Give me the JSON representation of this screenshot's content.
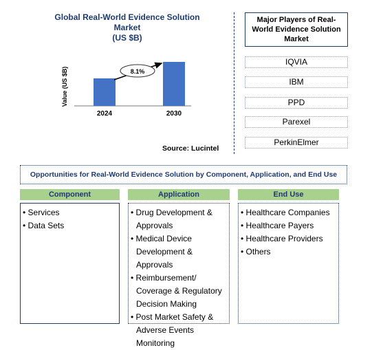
{
  "chart_data": {
    "type": "bar",
    "title": "Global Real-World Evidence Solution Market\n(US $B)",
    "ylabel": "Value (US $B)",
    "categories": [
      "2024",
      "2030"
    ],
    "values": [
      1.0,
      1.6
    ],
    "annotation": "8.1%",
    "source": "Source: Lucintel",
    "bar_color": "#4472C4"
  },
  "players": {
    "title": "Major Players of Real-World Evidence Solution Market",
    "items": [
      "IQVIA",
      "IBM",
      "PPD",
      "Parexel",
      "PerkinElmer"
    ]
  },
  "opportunities": {
    "title": "Opportunities for Real-World Evidence Solution by Component, Application, and End Use",
    "columns": [
      {
        "header": "Component",
        "items": [
          "Services",
          "Data Sets"
        ]
      },
      {
        "header": "Application",
        "items": [
          "Drug Development & Approvals",
          "Medical Device Development & Approvals",
          "Reimbursement/ Coverage & Regulatory Decision Making",
          "Post Market Safety & Adverse Events Monitoring"
        ]
      },
      {
        "header": "End Use",
        "items": [
          "Healthcare Companies",
          "Healthcare Payers",
          "Healthcare Providers",
          "Others"
        ]
      }
    ]
  },
  "colors": {
    "accent": "#1F3A6E",
    "header_green": "#A9D18E"
  }
}
